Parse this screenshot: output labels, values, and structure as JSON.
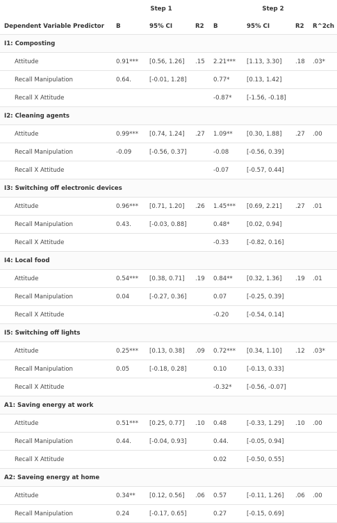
{
  "table": {
    "steps": [
      "Step 1",
      "Step 2"
    ],
    "columns": [
      "Dependent Variable Predictor",
      "B",
      "95% CI",
      "R2",
      "B",
      "95% CI",
      "R2",
      "R^2ch"
    ],
    "sections": [
      {
        "title": "I1: Composting",
        "rows": [
          [
            "Attitude",
            "0.91***",
            "[0.56, 1.26]",
            ".15",
            "2.21***",
            "[1.13, 3.30]",
            ".18",
            ".03*"
          ],
          [
            "Recall Manipulation",
            "0.64.",
            "[-0.01, 1.28]",
            null,
            "0.77*",
            "[0.13, 1.42]",
            null,
            null
          ],
          [
            "Recall X Attitude",
            null,
            null,
            null,
            "-0.87*",
            "[-1.56, -0.18]",
            null,
            null
          ]
        ]
      },
      {
        "title": "I2: Cleaning agents",
        "rows": [
          [
            "Attitude",
            "0.99***",
            "[0.74, 1.24]",
            ".27",
            "1.09**",
            "[0.30, 1.88]",
            ".27",
            ".00"
          ],
          [
            "Recall Manipulation",
            "-0.09",
            "[-0.56, 0.37]",
            null,
            "-0.08",
            "[-0.56, 0.39]",
            null,
            null
          ],
          [
            "Recall X Attitude",
            null,
            null,
            null,
            "-0.07",
            "[-0.57, 0.44]",
            null,
            null
          ]
        ]
      },
      {
        "title": "I3: Switching off electronic devices",
        "rows": [
          [
            "Attitude",
            "0.96***",
            "[0.71, 1.20]",
            ".26",
            "1.45***",
            "[0.69, 2.21]",
            ".27",
            ".01"
          ],
          [
            "Recall Manipulation",
            "0.43.",
            "[-0.03, 0.88]",
            null,
            "0.48*",
            "[0.02, 0.94]",
            null,
            null
          ],
          [
            "Recall X Attitude",
            null,
            null,
            null,
            "-0.33",
            "[-0.82, 0.16]",
            null,
            null
          ]
        ]
      },
      {
        "title": "I4: Local food",
        "rows": [
          [
            "Attitude",
            "0.54***",
            "[0.38, 0.71]",
            ".19",
            "0.84**",
            "[0.32, 1.36]",
            ".19",
            ".01"
          ],
          [
            "Recall Manipulation",
            "0.04",
            "[-0.27, 0.36]",
            null,
            "0.07",
            "[-0.25, 0.39]",
            null,
            null
          ],
          [
            "Recall X Attitude",
            null,
            null,
            null,
            "-0.20",
            "[-0.54, 0.14]",
            null,
            null
          ]
        ]
      },
      {
        "title": "I5: Switching off lights",
        "rows": [
          [
            "Attitude",
            "0.25***",
            "[0.13, 0.38]",
            ".09",
            "0.72***",
            "[0.34, 1.10]",
            ".12",
            ".03*"
          ],
          [
            "Recall Manipulation",
            "0.05",
            "[-0.18, 0.28]",
            null,
            "0.10",
            "[-0.13, 0.33]",
            null,
            null
          ],
          [
            "Recall X Attitude",
            null,
            null,
            null,
            "-0.32*",
            "[-0.56, -0.07]",
            null,
            null
          ]
        ]
      },
      {
        "title": "A1: Saving energy at work",
        "rows": [
          [
            "Attitude",
            "0.51***",
            "[0.25, 0.77]",
            ".10",
            "0.48",
            "[-0.33, 1.29]",
            ".10",
            ".00"
          ],
          [
            "Recall Manipulation",
            "0.44.",
            "[-0.04, 0.93]",
            null,
            "0.44.",
            "[-0.05, 0.94]",
            null,
            null
          ],
          [
            "Recall X Attitude",
            null,
            null,
            null,
            "0.02",
            "[-0.50, 0.55]",
            null,
            null
          ]
        ]
      },
      {
        "title": "A2: Saveing energy at home",
        "rows": [
          [
            "Attitude",
            "0.34**",
            "[0.12, 0.56]",
            ".06",
            "0.57",
            "[-0.11, 1.26]",
            ".06",
            ".00"
          ],
          [
            "Recall Manipulation",
            "0.24",
            "[-0.17, 0.65]",
            null,
            "0.27",
            "[-0.15, 0.69]",
            null,
            null
          ]
        ]
      }
    ]
  }
}
